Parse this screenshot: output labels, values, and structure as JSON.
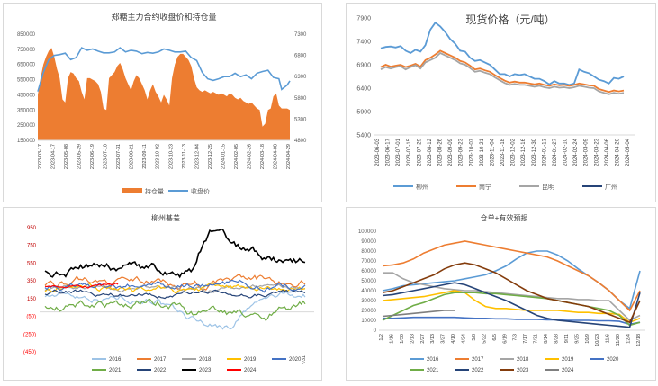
{
  "chart_data": [
    {
      "type": "area+line",
      "title": "郑糖主力合约收盘价和持仓量",
      "left_ticks": [
        "850000",
        "750000",
        "650000",
        "550000",
        "450000",
        "350000",
        "250000",
        "150000"
      ],
      "right_ticks": [
        "7300",
        "6800",
        "6300",
        "5800",
        "5300",
        "4800"
      ],
      "x_labels": [
        "2023-03-17",
        "2023-04-17",
        "2023-05-08",
        "2023-05-29",
        "2023-06-19",
        "2023-07-10",
        "2023-07-31",
        "2023-08-21",
        "2023-09-11",
        "2023-10-02",
        "2023-10-23",
        "2023-11-13",
        "2023-12-04",
        "2023-12-25",
        "2024-01-15",
        "2024-02-05",
        "2024-02-26",
        "2024-03-18",
        "2024-04-08",
        "2024-04-29"
      ],
      "legend": [
        "持仓量",
        "收盘价"
      ],
      "colors": {
        "area": "#ed7d31",
        "line": "#5b9bd5"
      },
      "oi_points": [
        [
          0,
          450000
        ],
        [
          1,
          560000
        ],
        [
          2,
          650000
        ],
        [
          3,
          700000
        ],
        [
          4,
          740000
        ],
        [
          5,
          760000
        ],
        [
          6,
          700000
        ],
        [
          7,
          620000
        ],
        [
          8,
          560000
        ],
        [
          9,
          420000
        ],
        [
          10,
          400000
        ],
        [
          11,
          560000
        ],
        [
          12,
          600000
        ],
        [
          13,
          590000
        ],
        [
          14,
          560000
        ],
        [
          15,
          540000
        ],
        [
          16,
          470000
        ],
        [
          17,
          420000
        ],
        [
          18,
          560000
        ],
        [
          19,
          560000
        ],
        [
          20,
          550000
        ],
        [
          21,
          540000
        ],
        [
          22,
          520000
        ],
        [
          23,
          470000
        ],
        [
          24,
          360000
        ],
        [
          25,
          350000
        ],
        [
          26,
          560000
        ],
        [
          27,
          580000
        ],
        [
          28,
          600000
        ],
        [
          29,
          640000
        ],
        [
          30,
          660000
        ],
        [
          31,
          620000
        ],
        [
          32,
          560000
        ],
        [
          33,
          520000
        ],
        [
          34,
          480000
        ],
        [
          35,
          540000
        ],
        [
          36,
          580000
        ],
        [
          37,
          560000
        ],
        [
          38,
          520000
        ],
        [
          39,
          480000
        ],
        [
          40,
          420000
        ],
        [
          41,
          480000
        ],
        [
          42,
          520000
        ],
        [
          43,
          470000
        ],
        [
          44,
          440000
        ],
        [
          45,
          400000
        ],
        [
          46,
          450000
        ],
        [
          47,
          420000
        ],
        [
          48,
          380000
        ],
        [
          49,
          560000
        ],
        [
          50,
          650000
        ],
        [
          51,
          700000
        ],
        [
          52,
          720000
        ],
        [
          53,
          720000
        ],
        [
          54,
          700000
        ],
        [
          55,
          680000
        ],
        [
          56,
          640000
        ],
        [
          57,
          560000
        ],
        [
          58,
          500000
        ],
        [
          59,
          480000
        ],
        [
          60,
          470000
        ],
        [
          61,
          480000
        ],
        [
          62,
          470000
        ],
        [
          63,
          460000
        ],
        [
          64,
          470000
        ],
        [
          65,
          460000
        ],
        [
          66,
          450000
        ],
        [
          67,
          460000
        ],
        [
          68,
          450000
        ],
        [
          69,
          440000
        ],
        [
          70,
          460000
        ],
        [
          71,
          450000
        ],
        [
          72,
          430000
        ],
        [
          73,
          420000
        ],
        [
          74,
          430000
        ],
        [
          75,
          410000
        ],
        [
          76,
          400000
        ],
        [
          77,
          390000
        ],
        [
          78,
          400000
        ],
        [
          79,
          380000
        ],
        [
          80,
          360000
        ],
        [
          81,
          350000
        ],
        [
          82,
          240000
        ],
        [
          83,
          260000
        ],
        [
          84,
          350000
        ],
        [
          85,
          360000
        ],
        [
          86,
          440000
        ],
        [
          87,
          460000
        ],
        [
          88,
          380000
        ],
        [
          89,
          360000
        ],
        [
          90,
          360000
        ],
        [
          91,
          360000
        ],
        [
          92,
          350000
        ]
      ],
      "price_points": [
        [
          0,
          5950
        ],
        [
          2,
          6400
        ],
        [
          4,
          6700
        ],
        [
          6,
          6800
        ],
        [
          8,
          6820
        ],
        [
          10,
          6850
        ],
        [
          12,
          6700
        ],
        [
          14,
          6750
        ],
        [
          16,
          6980
        ],
        [
          18,
          6920
        ],
        [
          20,
          6950
        ],
        [
          22,
          6900
        ],
        [
          24,
          6860
        ],
        [
          26,
          6860
        ],
        [
          28,
          6880
        ],
        [
          30,
          6980
        ],
        [
          32,
          6880
        ],
        [
          34,
          6920
        ],
        [
          36,
          6900
        ],
        [
          38,
          6840
        ],
        [
          40,
          6870
        ],
        [
          42,
          6850
        ],
        [
          44,
          6880
        ],
        [
          46,
          6950
        ],
        [
          48,
          6920
        ],
        [
          50,
          6880
        ],
        [
          52,
          6880
        ],
        [
          54,
          6900
        ],
        [
          56,
          6750
        ],
        [
          58,
          6680
        ],
        [
          60,
          6400
        ],
        [
          62,
          6250
        ],
        [
          64,
          6210
        ],
        [
          66,
          6250
        ],
        [
          68,
          6300
        ],
        [
          70,
          6300
        ],
        [
          72,
          6380
        ],
        [
          74,
          6300
        ],
        [
          76,
          6340
        ],
        [
          78,
          6250
        ],
        [
          80,
          6380
        ],
        [
          82,
          6420
        ],
        [
          84,
          6450
        ],
        [
          86,
          6280
        ],
        [
          88,
          6250
        ],
        [
          89,
          6000
        ],
        [
          90,
          6050
        ],
        [
          91,
          6100
        ],
        [
          92,
          6200
        ]
      ]
    },
    {
      "type": "line",
      "title": "现货价格（元/吨）",
      "y_ticks": [
        "7900",
        "7400",
        "6900",
        "6400",
        "5900",
        "5400"
      ],
      "ylim": [
        5400,
        7900
      ],
      "x_labels": [
        "2023-06-03",
        "2023-06-17",
        "2023-07-01",
        "2023-07-15",
        "2023-07-29",
        "2023-08-12",
        "2023-08-26",
        "2023-09-09",
        "2023-09-23",
        "2023-10-07",
        "2023-10-21",
        "2023-11-04",
        "2023-11-18",
        "2023-12-02",
        "2023-12-16",
        "2023-12-30",
        "2024-01-13",
        "2024-01-27",
        "2024-02-10",
        "2024-02-24",
        "2024-03-09",
        "2024-03-23",
        "2024-04-06",
        "2024-04-20",
        "2024-05-04"
      ],
      "series": [
        {
          "name": "柳州",
          "color": "#5b9bd5",
          "values": [
            7250,
            7280,
            7290,
            7270,
            7300,
            7200,
            7150,
            7220,
            7180,
            7320,
            7650,
            7800,
            7720,
            7600,
            7450,
            7350,
            7200,
            7180,
            7050,
            6980,
            7000,
            6950,
            6900,
            6800,
            6700,
            6700,
            6650,
            6700,
            6680,
            6700,
            6650,
            6600,
            6600,
            6550,
            6480,
            6550,
            6500,
            6500,
            6470,
            6500,
            6800,
            6750,
            6720,
            6650,
            6580,
            6550,
            6500,
            6620,
            6600,
            6650
          ]
        },
        {
          "name": "南宁",
          "color": "#ed7d31",
          "values": [
            6850,
            6900,
            6860,
            6880,
            6900,
            6850,
            6880,
            6920,
            6860,
            7000,
            7050,
            7120,
            7200,
            7150,
            7100,
            7050,
            6980,
            6950,
            6880,
            6800,
            6820,
            6780,
            6750,
            6680,
            6620,
            6560,
            6520,
            6540,
            6520,
            6520,
            6500,
            6480,
            6500,
            6470,
            6450,
            6480,
            6460,
            6470,
            6450,
            6470,
            6500,
            6480,
            6460,
            6450,
            6380,
            6350,
            6320,
            6350,
            6330,
            6350
          ]
        },
        {
          "name": "昆明",
          "color": "#a5a5a5",
          "values": [
            6800,
            6850,
            6820,
            6850,
            6870,
            6800,
            6850,
            6890,
            6820,
            6950,
            7000,
            7050,
            7150,
            7100,
            7050,
            7000,
            6930,
            6900,
            6830,
            6750,
            6770,
            6730,
            6700,
            6630,
            6570,
            6510,
            6470,
            6490,
            6470,
            6470,
            6450,
            6430,
            6450,
            6420,
            6400,
            6430,
            6410,
            6420,
            6400,
            6420,
            6450,
            6430,
            6410,
            6400,
            6330,
            6300,
            6270,
            6300,
            6280,
            6300
          ]
        },
        {
          "name": "广州",
          "color": "#264478",
          "values": []
        }
      ]
    },
    {
      "type": "line",
      "title": "柳州基差",
      "y_ticks": [
        "950",
        "750",
        "550",
        "350",
        "150",
        "(50)",
        "(250)",
        "(450)"
      ],
      "ylim": [
        -450,
        950
      ],
      "x_labels": [
        "7/31"
      ],
      "series": [
        {
          "name": "2016",
          "color": "#9dc3e6"
        },
        {
          "name": "2017",
          "color": "#ed7d31"
        },
        {
          "name": "2018",
          "color": "#a5a5a5"
        },
        {
          "name": "2019",
          "color": "#ffc000"
        },
        {
          "name": "2020",
          "color": "#4472c4"
        },
        {
          "name": "2021",
          "color": "#70ad47"
        },
        {
          "name": "2022",
          "color": "#264478"
        },
        {
          "name": "2023",
          "color": "#000000"
        },
        {
          "name": "2024",
          "color": "#ff0000"
        }
      ]
    },
    {
      "type": "line",
      "title": "仓单+有效预报",
      "y_ticks": [
        "100000",
        "90000",
        "80000",
        "70000",
        "60000",
        "50000",
        "40000",
        "30000",
        "20000",
        "10000",
        "0"
      ],
      "ylim": [
        0,
        100000
      ],
      "x_labels": [
        "1/2",
        "1/16",
        "1/30",
        "2/13",
        "2/27",
        "3/13",
        "3/27",
        "4/10",
        "4/24",
        "5/8",
        "5/22",
        "6/5",
        "6/19",
        "7/3",
        "7/17",
        "7/31",
        "8/14",
        "8/28",
        "9/11",
        "9/25",
        "10/9",
        "10/23",
        "11/6",
        "11/20",
        "12/4",
        "12/18"
      ],
      "series": [
        {
          "name": "2016",
          "color": "#5b9bd5",
          "values": [
            40000,
            42000,
            45000,
            46000,
            47000,
            48000,
            49000,
            50000,
            52000,
            54000,
            56000,
            60000,
            65000,
            72000,
            78000,
            80000,
            80000,
            76000,
            70000,
            62000,
            55000,
            48000,
            40000,
            30000,
            22000,
            60000
          ]
        },
        {
          "name": "2017",
          "color": "#ed7d31",
          "values": [
            65000,
            66000,
            68000,
            72000,
            78000,
            82000,
            86000,
            88000,
            90000,
            88000,
            86000,
            84000,
            82000,
            80000,
            78000,
            76000,
            74000,
            70000,
            65000,
            60000,
            55000,
            48000,
            40000,
            30000,
            20000,
            40000
          ]
        },
        {
          "name": "2018",
          "color": "#a5a5a5",
          "values": [
            58000,
            58000,
            52000,
            48000,
            46000,
            44000,
            42000,
            41000,
            40000,
            40000,
            39000,
            38000,
            37000,
            36000,
            35000,
            34000,
            33000,
            32000,
            32000,
            31000,
            31000,
            30000,
            30000,
            20000,
            10000,
            15000
          ]
        },
        {
          "name": "2019",
          "color": "#ffc000",
          "values": [
            30000,
            31000,
            32000,
            33000,
            34000,
            36000,
            38000,
            40000,
            38000,
            30000,
            24000,
            22000,
            22000,
            21000,
            20000,
            20000,
            20000,
            20000,
            19000,
            18000,
            18000,
            17000,
            17000,
            16000,
            8000,
            12000
          ]
        },
        {
          "name": "2020",
          "color": "#4472c4",
          "values": [
            12000,
            12000,
            12500,
            13000,
            13000,
            13000,
            13000,
            13000,
            12500,
            12000,
            12000,
            11500,
            11500,
            11000,
            11000,
            11000,
            10500,
            10500,
            10000,
            10000,
            10000,
            9500,
            9500,
            9000,
            6000,
            8000
          ]
        },
        {
          "name": "2021",
          "color": "#70ad47",
          "values": [
            10000,
            15000,
            20000,
            25000,
            28000,
            32000,
            36000,
            38000,
            38000,
            38000,
            37000,
            37000,
            36000,
            35000,
            34000,
            33000,
            32000,
            30000,
            28000,
            26000,
            24000,
            22000,
            20000,
            15000,
            5000,
            8000
          ]
        },
        {
          "name": "2022",
          "color": "#264478",
          "values": [
            35000,
            36000,
            38000,
            40000,
            42000,
            44000,
            46000,
            48000,
            46000,
            42000,
            38000,
            34000,
            30000,
            25000,
            20000,
            15000,
            12000,
            10000,
            9000,
            8000,
            7000,
            6000,
            5000,
            4000,
            3000,
            38000
          ]
        },
        {
          "name": "2023",
          "color": "#843c0c",
          "values": [
            38000,
            40000,
            44000,
            48000,
            52000,
            56000,
            62000,
            66000,
            68000,
            66000,
            62000,
            58000,
            52000,
            46000,
            40000,
            36000,
            32000,
            30000,
            28000,
            26000,
            24000,
            20000,
            16000,
            12000,
            8000,
            30000
          ]
        },
        {
          "name": "2024",
          "color": "#7f7f7f",
          "values": [
            14000,
            15000,
            16000,
            17000,
            18000,
            19000,
            20000,
            20000
          ]
        }
      ]
    }
  ]
}
